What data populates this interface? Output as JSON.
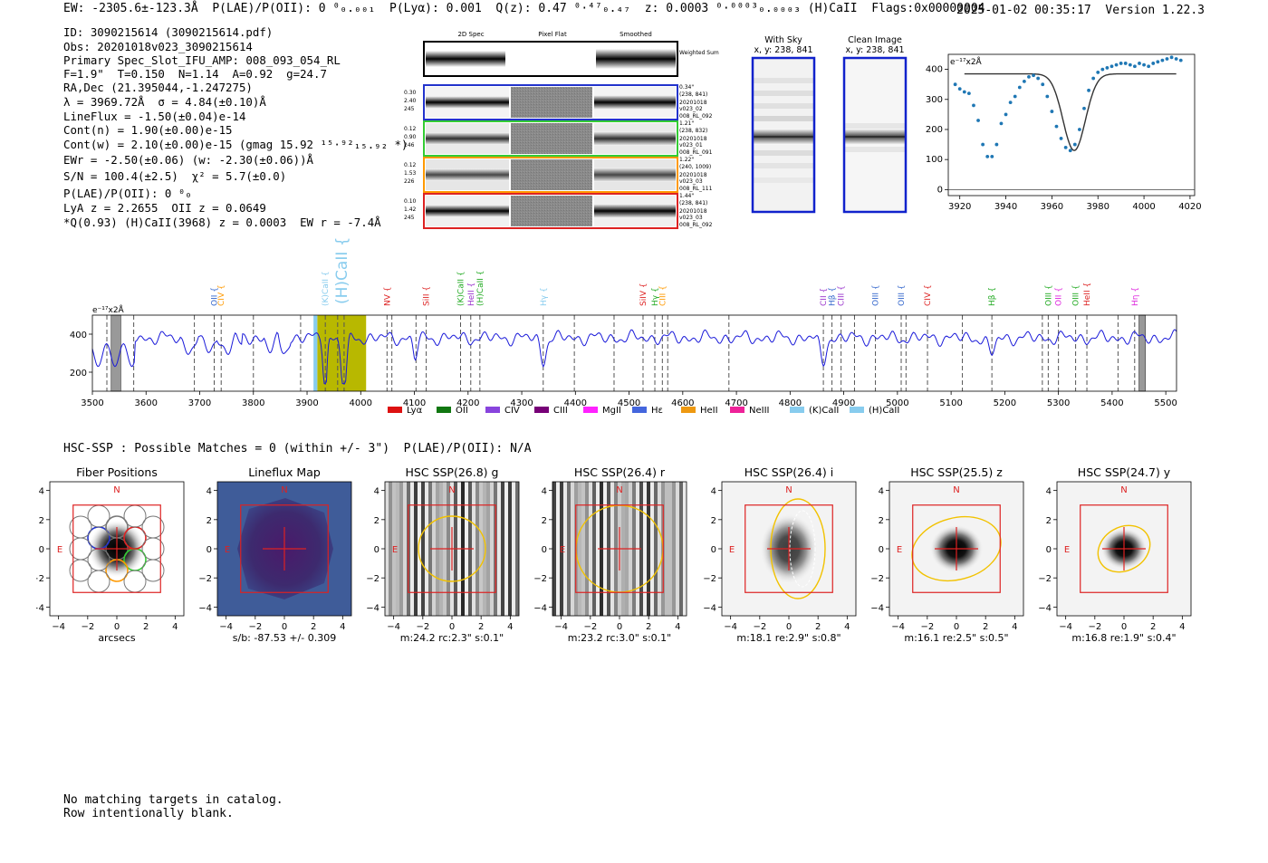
{
  "header": {
    "left": "EW: -2305.6±-123.3Å  P(LAE)/P(OII): 0 ⁰₀.₀₀₁  P(Lyα): 0.001  Q(z): 0.47 ⁰·⁴⁷₀.₄₇  z: 0.0003 ⁰·⁰⁰⁰³₀.₀₀₀₃ (H)CaII  Flags:0x00000004",
    "timestamp": "2025-01-02 00:35:17",
    "version": "Version 1.22.3"
  },
  "info_lines": [
    "ID: 3090215614 (3090215614.pdf)",
    "Obs: 20201018v023_3090215614",
    "Primary Spec_Slot_IFU_AMP: 008_093_054_RL",
    "F=1.9\"  T=0.150  N=1.14  A=0.92  g=24.7",
    "RA,Dec (21.395044,-1.247275)",
    "λ = 3969.72Å  σ = 4.84(±0.10)Å",
    "LineFlux = -1.50(±0.04)e-14",
    "Cont(n) = 1.90(±0.00)e-15",
    "Cont(w) = 2.10(±0.00)e-15 (gmag 15.92 ¹⁵·⁹²₁₅.₉₂ *)",
    "EWr = -2.50(±0.06) (w: -2.30(±0.06))Å",
    "S/N = 100.4(±2.5)  χ² = 5.7(±0.0)",
    "P(LAE)/P(OII): 0 ⁰₀",
    "LyA z = 2.2655  OII z = 0.0649",
    "*Q(0.93) (H)CaII(3968) z = 0.0003  EW r = -7.4Å"
  ],
  "cutouts": {
    "col_headers": [
      "2D Spec",
      "Pixel Flat",
      "Smoothed"
    ],
    "weighted_label": "Weighted Sum",
    "rows": [
      {
        "left": [
          "0.30",
          "2.40",
          "245"
        ],
        "right": [
          "0.34\"",
          "(238, 841)",
          "20201018",
          "v023_02",
          "008_RL_092"
        ],
        "color": "#2233cc"
      },
      {
        "left": [
          "0.12",
          "0.90",
          "246"
        ],
        "right": [
          "1.21\"",
          "(238, 832)",
          "20201018",
          "v023_01",
          "008_RL_091"
        ],
        "color": "#33cc33"
      },
      {
        "left": [
          "0.12",
          "1.53",
          "226"
        ],
        "right": [
          "1.22\"",
          "(240, 1009)",
          "20201018",
          "v023_03",
          "008_RL_111"
        ],
        "color": "#ff9900"
      },
      {
        "left": [
          "0.10",
          "1.42",
          "245"
        ],
        "right": [
          "1.44\"",
          "(238, 841)",
          "20201018",
          "v023_03",
          "008_RL_092"
        ],
        "color": "#dd2222"
      }
    ]
  },
  "sky_panels": [
    {
      "title": "With Sky",
      "coords": "x, y: 238, 841"
    },
    {
      "title": "Clean Image",
      "coords": "x, y: 238, 841"
    }
  ],
  "zoom_plot": {
    "unit_label": "e⁻¹⁷x2Å",
    "x_ticks": [
      "3920",
      "3940",
      "3960",
      "3980",
      "4000",
      "4020"
    ],
    "y_ticks": [
      "0",
      "100",
      "200",
      "300",
      "400"
    ],
    "chart_data": {
      "type": "scatter",
      "x": [
        3918,
        3920,
        3922,
        3924,
        3926,
        3928,
        3930,
        3932,
        3934,
        3936,
        3938,
        3940,
        3942,
        3944,
        3946,
        3948,
        3950,
        3952,
        3954,
        3956,
        3958,
        3960,
        3962,
        3964,
        3966,
        3968,
        3970,
        3972,
        3974,
        3976,
        3978,
        3980,
        3982,
        3984,
        3986,
        3988,
        3990,
        3992,
        3994,
        3996,
        3998,
        4000,
        4002,
        4004,
        4006,
        4008,
        4010,
        4012,
        4014,
        4016
      ],
      "y": [
        350,
        335,
        325,
        320,
        280,
        230,
        150,
        110,
        110,
        150,
        220,
        250,
        290,
        310,
        340,
        360,
        375,
        380,
        370,
        350,
        310,
        260,
        210,
        170,
        140,
        130,
        150,
        200,
        270,
        330,
        370,
        390,
        400,
        405,
        410,
        415,
        420,
        420,
        415,
        410,
        420,
        415,
        410,
        420,
        425,
        430,
        435,
        440,
        435,
        430
      ],
      "fit_baseline": 385,
      "xlim": [
        3915,
        4022
      ],
      "ylim": [
        -20,
        450
      ]
    }
  },
  "spectrum": {
    "unit_label": "e⁻¹⁷x2Å",
    "x_ticks": [
      "3500",
      "3600",
      "3700",
      "3800",
      "3900",
      "4000",
      "4100",
      "4200",
      "4300",
      "4400",
      "4500",
      "4600",
      "4700",
      "4800",
      "4900",
      "5000",
      "5100",
      "5200",
      "5300",
      "5400",
      "5500"
    ],
    "y_ticks": [
      "200",
      "400"
    ],
    "xlim": [
      3500,
      5520
    ],
    "ylim": [
      100,
      500
    ],
    "lines": [
      {
        "name": "OII",
        "wave": 3727,
        "color": "#3366cc"
      },
      {
        "name": "CIV",
        "wave": 3740,
        "color": "#ff9900"
      },
      {
        "name": "(K)CaII",
        "wave": 3934,
        "color": "#88ccee"
      },
      {
        "name": "(H)CaII",
        "wave": 3969,
        "color": "#88ccee"
      },
      {
        "name": "NV",
        "wave": 4049,
        "color": "#dd2222"
      },
      {
        "name": "SiII",
        "wave": 4122,
        "color": "#dd2222"
      },
      {
        "name": "(K)CaII",
        "wave": 4186,
        "color": "#22aa22"
      },
      {
        "name": "HeII",
        "wave": 4205,
        "color": "#9933cc"
      },
      {
        "name": "(H)CaII",
        "wave": 4222,
        "color": "#22aa22"
      },
      {
        "name": "Hγ",
        "wave": 4340,
        "color": "#88ccee"
      },
      {
        "name": "SiIV",
        "wave": 4526,
        "color": "#dd2222"
      },
      {
        "name": "Hγ",
        "wave": 4548,
        "color": "#22aa22"
      },
      {
        "name": "CIII",
        "wave": 4562,
        "color": "#ff9900"
      },
      {
        "name": "CII",
        "wave": 4862,
        "color": "#9933cc"
      },
      {
        "name": "Hβ",
        "wave": 4878,
        "color": "#3366cc"
      },
      {
        "name": "CIII",
        "wave": 4895,
        "color": "#9933cc"
      },
      {
        "name": "OIII",
        "wave": 4959,
        "color": "#3366cc"
      },
      {
        "name": "OIII",
        "wave": 5007,
        "color": "#3366cc"
      },
      {
        "name": "CIV",
        "wave": 5056,
        "color": "#dd2222"
      },
      {
        "name": "Hβ",
        "wave": 5176,
        "color": "#22aa22"
      },
      {
        "name": "OIII",
        "wave": 5281,
        "color": "#22aa22"
      },
      {
        "name": "OII",
        "wave": 5300,
        "color": "#dd22dd"
      },
      {
        "name": "OIII",
        "wave": 5332,
        "color": "#22aa22"
      },
      {
        "name": "HeII",
        "wave": 5353,
        "color": "#dd2222"
      },
      {
        "name": "Hη",
        "wave": 5442,
        "color": "#dd22dd"
      }
    ],
    "legend": [
      {
        "label": "Lyα",
        "color": "#dd1111"
      },
      {
        "label": "OII",
        "color": "#117711"
      },
      {
        "label": "CIV",
        "color": "#8844dd"
      },
      {
        "label": "CIII",
        "color": "#770077"
      },
      {
        "label": "MgII",
        "color": "#ff22ff"
      },
      {
        "label": "Hε",
        "color": "#4466dd"
      },
      {
        "label": "HeII",
        "color": "#ee9911"
      },
      {
        "label": "NeIII",
        "color": "#ee2299"
      },
      {
        "label": "(K)CaII",
        "color": "#88ccee"
      },
      {
        "label": "(H)CaII",
        "color": "#88ccee"
      }
    ]
  },
  "hsc": {
    "summary": "HSC-SSP : Possible Matches = 0 (within +/- 3\")  P(LAE)/P(OII): N/A",
    "axis_ticks": [
      "−4",
      "−2",
      "0",
      "2",
      "4"
    ],
    "compass_n": "N",
    "compass_e": "E",
    "panels": [
      {
        "title": "Fiber Positions",
        "caption": "arcsecs"
      },
      {
        "title": "Lineflux Map",
        "caption": "s/b: -87.53 +/- 0.309"
      },
      {
        "title": "HSC SSP(26.8) g",
        "caption": "m:24.2  rc:2.3\"  s:0.1\""
      },
      {
        "title": "HSC SSP(26.4) r",
        "caption": "m:23.2  rc:3.0\"  s:0.1\""
      },
      {
        "title": "HSC SSP(26.4) i",
        "caption": "m:18.1   re:2.9\"   s:0.8\""
      },
      {
        "title": "HSC SSP(25.5) z",
        "caption": "m:16.1   re:2.5\"   s:0.5\""
      },
      {
        "title": "HSC SSP(24.7) y",
        "caption": "m:16.8   re:1.9\"  s:0.4\""
      }
    ]
  },
  "footer": {
    "line1": "No matching targets in catalog.",
    "line2": "Row intentionally blank."
  }
}
